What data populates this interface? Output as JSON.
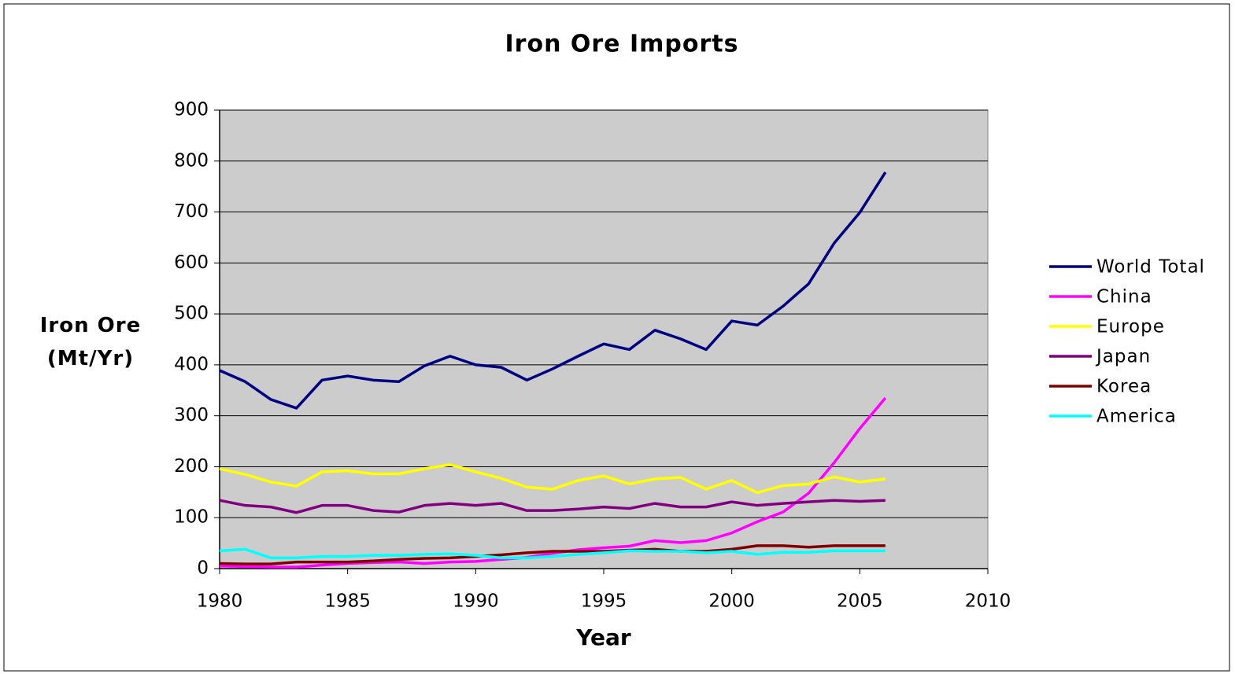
{
  "chart_data": {
    "type": "line",
    "title": "Iron Ore Imports",
    "x_label": "Year",
    "y_label": "Iron Ore (Mt/Yr)",
    "x": [
      1980,
      1981,
      1982,
      1983,
      1984,
      1985,
      1986,
      1987,
      1988,
      1989,
      1990,
      1991,
      1992,
      1993,
      1994,
      1995,
      1996,
      1997,
      1998,
      1999,
      2000,
      2001,
      2002,
      2003,
      2004,
      2005,
      2006
    ],
    "series": [
      {
        "name": "World Total",
        "color": "#000080",
        "values": [
          389,
          367,
          332,
          315,
          370,
          378,
          370,
          367,
          398,
          417,
          400,
          395,
          370,
          392,
          417,
          441,
          430,
          468,
          451,
          430,
          486,
          478,
          515,
          559,
          639,
          699,
          778
        ]
      },
      {
        "name": "China",
        "color": "#ff00ff",
        "values": [
          5,
          4,
          3,
          3,
          7,
          10,
          12,
          13,
          10,
          13,
          14,
          18,
          22,
          30,
          37,
          41,
          44,
          55,
          51,
          55,
          70,
          92,
          111,
          148,
          208,
          275,
          335
        ]
      },
      {
        "name": "Europe",
        "color": "#ffff00",
        "values": [
          196,
          185,
          170,
          162,
          190,
          192,
          186,
          186,
          196,
          204,
          190,
          177,
          160,
          156,
          173,
          182,
          166,
          176,
          179,
          156,
          173,
          149,
          163,
          166,
          180,
          170,
          176
        ]
      },
      {
        "name": "Japan",
        "color": "#800080",
        "values": [
          134,
          124,
          121,
          110,
          124,
          124,
          114,
          111,
          124,
          128,
          124,
          128,
          114,
          114,
          117,
          121,
          118,
          128,
          121,
          121,
          131,
          124,
          128,
          131,
          134,
          132,
          134
        ]
      },
      {
        "name": "Korea",
        "color": "#800000",
        "values": [
          10,
          9,
          9,
          13,
          13,
          13,
          15,
          18,
          20,
          21,
          24,
          27,
          31,
          34,
          34,
          34,
          36,
          38,
          34,
          34,
          38,
          45,
          45,
          42,
          45,
          45,
          45
        ]
      },
      {
        "name": "America",
        "color": "#00ffff",
        "values": [
          35,
          38,
          21,
          21,
          24,
          24,
          26,
          26,
          28,
          29,
          26,
          21,
          21,
          24,
          28,
          31,
          35,
          34,
          34,
          31,
          34,
          28,
          32,
          32,
          35,
          35,
          35
        ]
      }
    ],
    "xlim": [
      1980,
      2010
    ],
    "xticks": [
      1980,
      1985,
      1990,
      1995,
      2000,
      2005,
      2010
    ],
    "ylim": [
      0,
      900
    ],
    "yticks": [
      0,
      100,
      200,
      300,
      400,
      500,
      600,
      700,
      800,
      900
    ],
    "grid": true,
    "legend": "right",
    "plot_background": "#cccccc"
  }
}
